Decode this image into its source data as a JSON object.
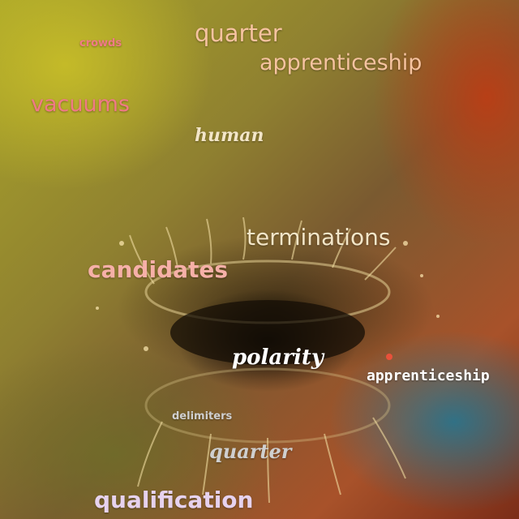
{
  "words": {
    "crowds": "crowds",
    "quarter_top": "quarter",
    "apprenticeship_top": "apprenticeship",
    "vacuums": "vacuums",
    "human": "human",
    "terminations": "terminations",
    "candidates": "candidates",
    "polarity": "polarity",
    "apprenticeship_right": "apprenticeship",
    "delimiters": "delimiters",
    "quarter_bottom": "quarter",
    "qualification": "qualification"
  },
  "colors": {
    "pink": "#f07a86",
    "peach": "#f6c3a0",
    "cream": "#f3e6c8",
    "white": "#ffffff",
    "grey": "#cfcfcf",
    "lavender": "#e6d2ee"
  }
}
